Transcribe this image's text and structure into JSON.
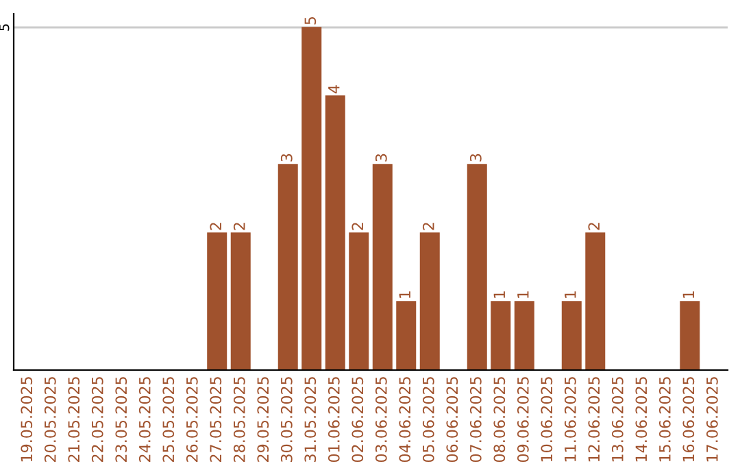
{
  "chart_data": {
    "type": "bar",
    "categories": [
      "19.05.2025",
      "20.05.2025",
      "21.05.2025",
      "22.05.2025",
      "23.05.2025",
      "24.05.2025",
      "25.05.2025",
      "26.05.2025",
      "27.05.2025",
      "28.05.2025",
      "29.05.2025",
      "30.05.2025",
      "31.05.2025",
      "01.06.2025",
      "02.06.2025",
      "03.06.2025",
      "04.06.2025",
      "05.06.2025",
      "06.06.2025",
      "07.06.2025",
      "08.06.2025",
      "09.06.2025",
      "10.06.2025",
      "11.06.2025",
      "12.06.2025",
      "13.06.2025",
      "14.06.2025",
      "15.06.2025",
      "16.06.2025",
      "17.06.2025"
    ],
    "values": [
      0,
      0,
      0,
      0,
      0,
      0,
      0,
      0,
      2,
      2,
      0,
      3,
      5,
      4,
      2,
      3,
      1,
      2,
      0,
      3,
      1,
      1,
      0,
      1,
      2,
      0,
      0,
      0,
      1,
      0
    ],
    "value_labels": [
      null,
      null,
      null,
      null,
      null,
      null,
      null,
      null,
      "2",
      "2",
      null,
      "3",
      "5",
      "4",
      "2",
      "3",
      "1",
      "2",
      null,
      "3",
      "1",
      "1",
      null,
      "1",
      "2",
      null,
      null,
      null,
      "1",
      null
    ],
    "color": "#a0522d",
    "ylim": [
      0,
      5.2
    ],
    "yticks": [
      5
    ],
    "grid": "y"
  }
}
